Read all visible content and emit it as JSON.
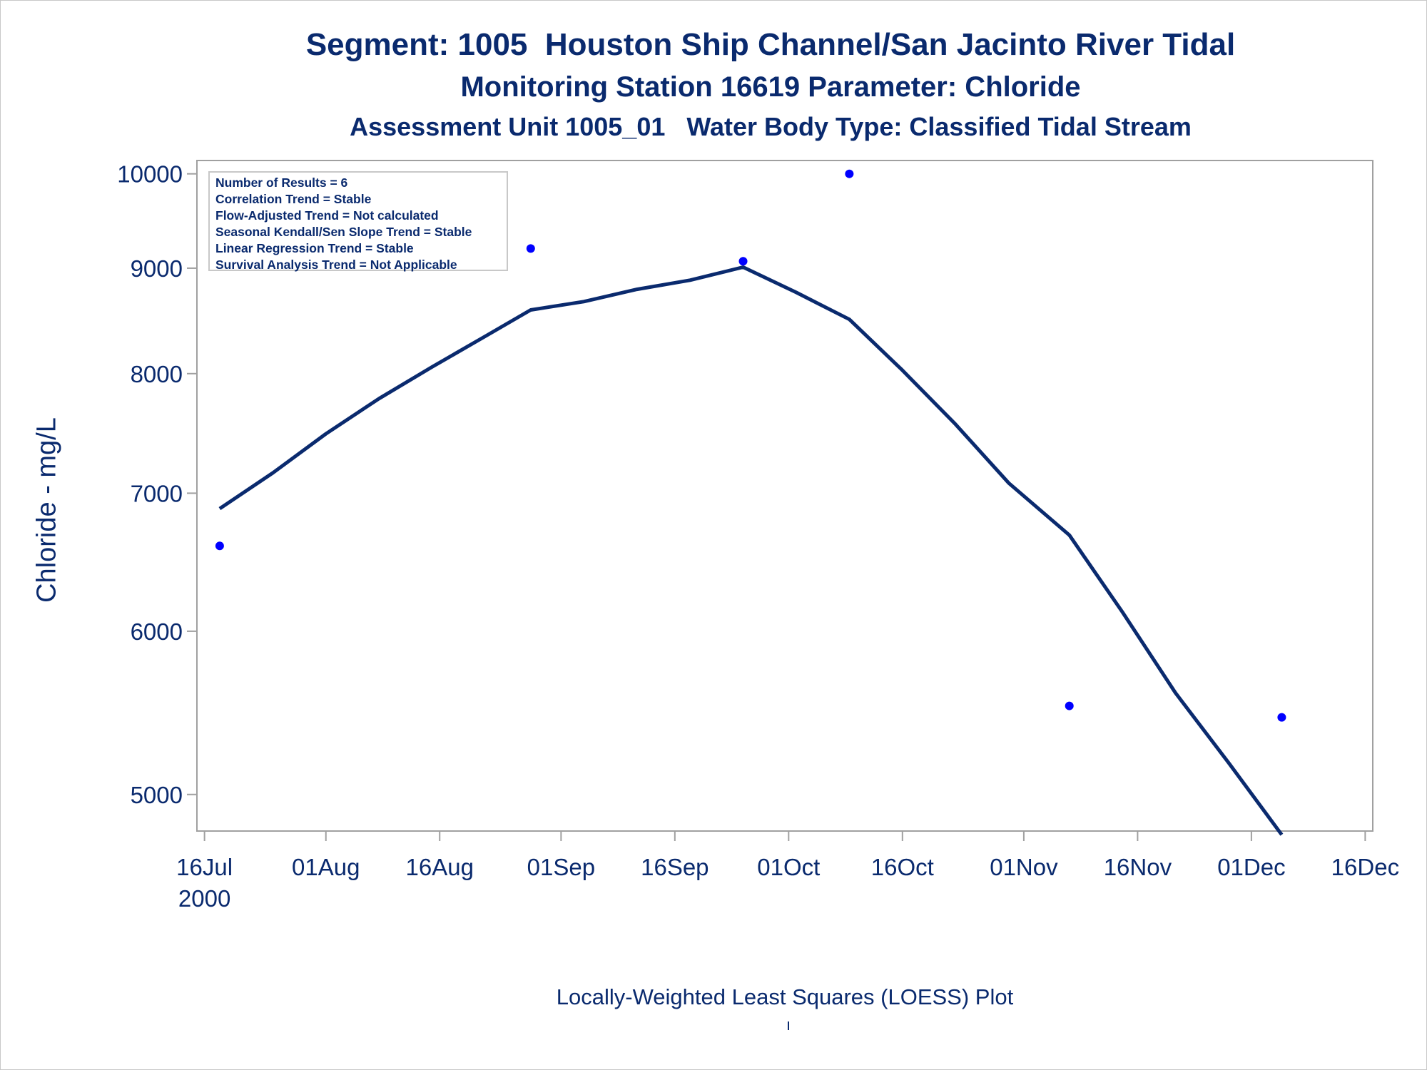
{
  "titles": {
    "line1": "Segment: 1005  Houston Ship Channel/San Jacinto River Tidal",
    "line2": "Monitoring Station 16619 Parameter: Chloride",
    "line3": "Assessment Unit 1005_01   Water Body Type: Classified Tidal Stream"
  },
  "stats": [
    "Number of Results = 6",
    "Correlation Trend = Stable",
    "Flow-Adjusted Trend = Not calculated",
    "Seasonal Kendall/Sen Slope Trend = Stable",
    "Linear Regression Trend = Stable",
    "Survival Analysis Trend = Not Applicable"
  ],
  "footnote": "Locally-Weighted Least Squares (LOESS) Plot",
  "footnote_mark": "'",
  "colors": {
    "text": "#0a2a6e",
    "points": "#0000ff",
    "line": "#0a2a6e",
    "frame": "#a0a0a0"
  },
  "chart_data": {
    "type": "scatter",
    "ylabel": "Chloride - mg/L",
    "xlabel": "",
    "yscale": "log",
    "ylim": [
      4800,
      10150
    ],
    "xlim": [
      "2000-07-15",
      "2000-12-17"
    ],
    "yticks": [
      5000,
      6000,
      7000,
      8000,
      9000,
      10000
    ],
    "xticks": [
      {
        "date": "2000-07-16",
        "label": "16Jul",
        "sublabel": "2000"
      },
      {
        "date": "2000-08-01",
        "label": "01Aug"
      },
      {
        "date": "2000-08-16",
        "label": "16Aug"
      },
      {
        "date": "2000-09-01",
        "label": "01Sep"
      },
      {
        "date": "2000-09-16",
        "label": "16Sep"
      },
      {
        "date": "2000-10-01",
        "label": "01Oct"
      },
      {
        "date": "2000-10-16",
        "label": "16Oct"
      },
      {
        "date": "2000-11-01",
        "label": "01Nov"
      },
      {
        "date": "2000-11-16",
        "label": "16Nov"
      },
      {
        "date": "2000-12-01",
        "label": "01Dec"
      },
      {
        "date": "2000-12-16",
        "label": "16Dec"
      }
    ],
    "series": [
      {
        "type": "scatter",
        "x": [
          "2000-07-18",
          "2000-08-28",
          "2000-09-25",
          "2000-10-09",
          "2000-11-07",
          "2000-12-05"
        ],
        "y": [
          6600,
          9200,
          9070,
          10000,
          5520,
          5450
        ]
      },
      {
        "type": "line",
        "x": [
          "2000-07-18",
          "2000-07-25",
          "2000-08-01",
          "2000-08-08",
          "2000-08-15",
          "2000-08-22",
          "2000-08-28",
          "2000-09-04",
          "2000-09-11",
          "2000-09-18",
          "2000-09-25",
          "2000-10-02",
          "2000-10-09",
          "2000-10-16",
          "2000-10-23",
          "2000-10-30",
          "2000-11-07",
          "2000-11-14",
          "2000-11-21",
          "2000-11-28",
          "2000-12-05"
        ],
        "y": [
          6880,
          7160,
          7480,
          7780,
          8060,
          8340,
          8590,
          8670,
          8790,
          8880,
          9010,
          8760,
          8500,
          8030,
          7560,
          7080,
          6680,
          6130,
          5600,
          5180,
          4780
        ]
      }
    ]
  }
}
